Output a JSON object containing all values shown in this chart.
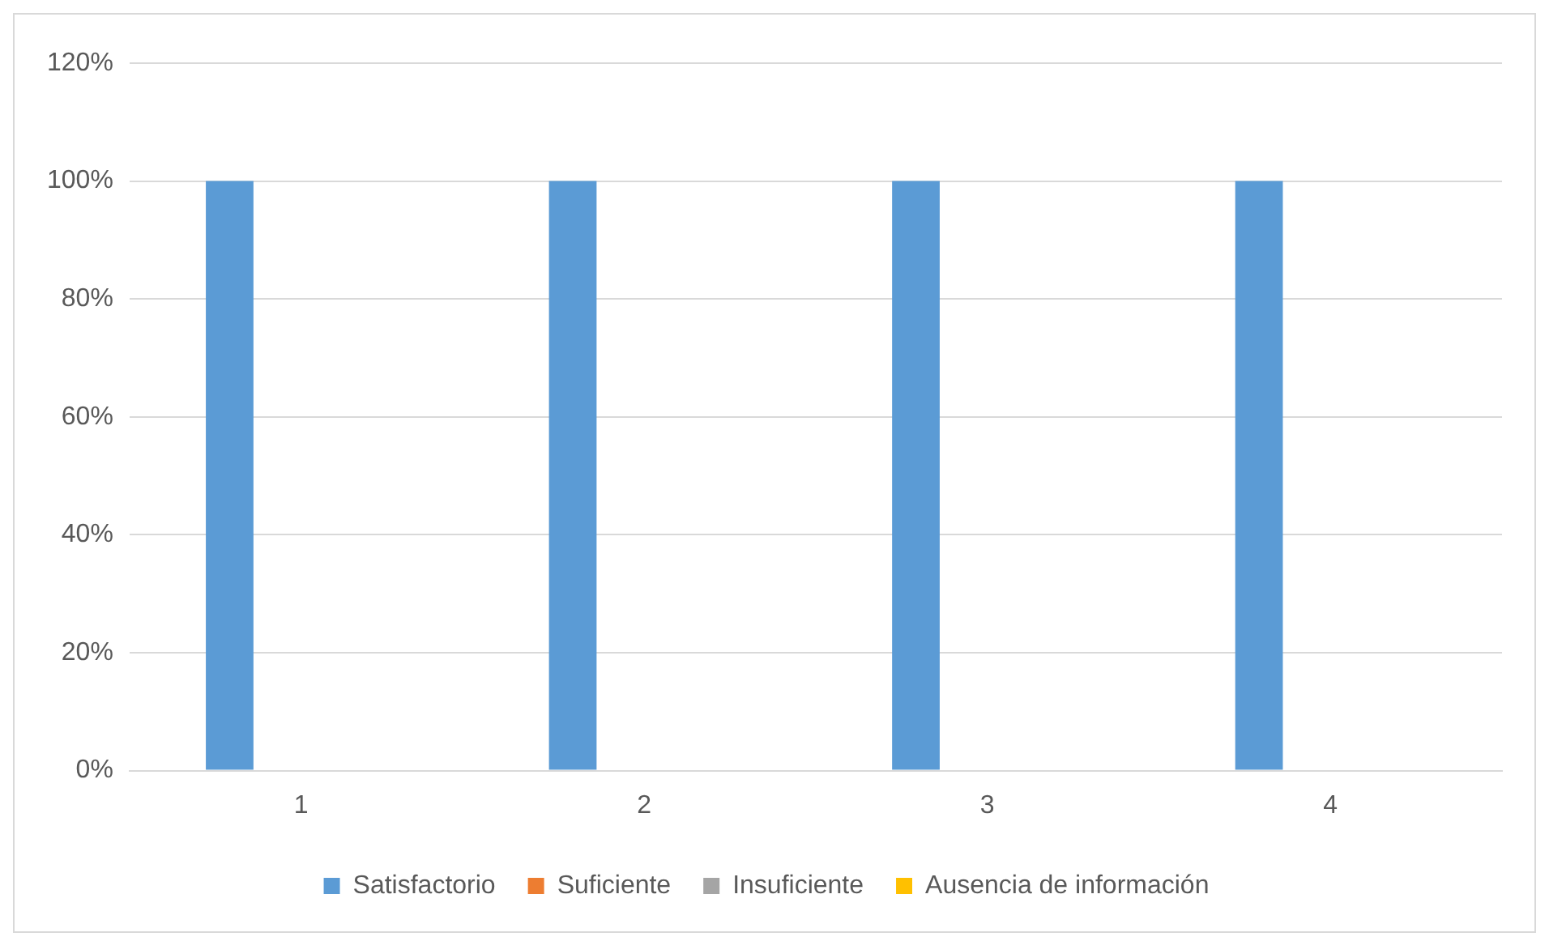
{
  "chart_data": {
    "type": "bar",
    "categories": [
      "1",
      "2",
      "3",
      "4"
    ],
    "series": [
      {
        "name": "Satisfactorio",
        "color": "#5b9bd5",
        "values": [
          100,
          100,
          100,
          100
        ]
      },
      {
        "name": "Suficiente",
        "color": "#ed7d31",
        "values": [
          0,
          0,
          0,
          0
        ]
      },
      {
        "name": "Insuficiente",
        "color": "#a5a5a5",
        "values": [
          0,
          0,
          0,
          0
        ]
      },
      {
        "name": "Ausencia de información",
        "color": "#ffc000",
        "values": [
          0,
          0,
          0,
          0
        ]
      }
    ],
    "ylim": [
      0,
      120
    ],
    "yticks": [
      {
        "value": 0,
        "label": "0%"
      },
      {
        "value": 20,
        "label": "20%"
      },
      {
        "value": 40,
        "label": "40%"
      },
      {
        "value": 60,
        "label": "60%"
      },
      {
        "value": 80,
        "label": "80%"
      },
      {
        "value": 100,
        "label": "100%"
      },
      {
        "value": 120,
        "label": "120%"
      }
    ],
    "grid": "y",
    "legend": "bottom"
  }
}
